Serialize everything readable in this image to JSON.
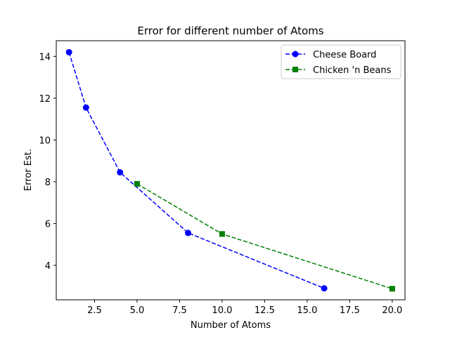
{
  "chart_data": {
    "type": "line",
    "title": "Error for different number of Atoms",
    "xlabel": "Number of Atoms",
    "ylabel": "Error Est.",
    "xlim": [
      0.25,
      20.75
    ],
    "ylim": [
      2.35,
      14.75
    ],
    "xticks": [
      2.5,
      5.0,
      7.5,
      10.0,
      12.5,
      15.0,
      17.5,
      20.0
    ],
    "xtick_labels": [
      "2.5",
      "5.0",
      "7.5",
      "10.0",
      "12.5",
      "15.0",
      "17.5",
      "20.0"
    ],
    "yticks": [
      4,
      6,
      8,
      10,
      12,
      14
    ],
    "ytick_labels": [
      "4",
      "6",
      "8",
      "10",
      "12",
      "14"
    ],
    "grid": false,
    "legend_position": "top-right",
    "series": [
      {
        "name": "Cheese Board",
        "color": "#0000ff",
        "marker": "circle",
        "linestyle": "dashed",
        "x": [
          1,
          2,
          4,
          8,
          16
        ],
        "y": [
          14.2,
          11.55,
          8.45,
          5.55,
          2.9
        ]
      },
      {
        "name": "Chicken 'n Beans",
        "color": "#008000",
        "marker": "square",
        "linestyle": "dashed",
        "x": [
          5,
          10,
          20
        ],
        "y": [
          7.9,
          5.5,
          2.88
        ]
      }
    ]
  }
}
